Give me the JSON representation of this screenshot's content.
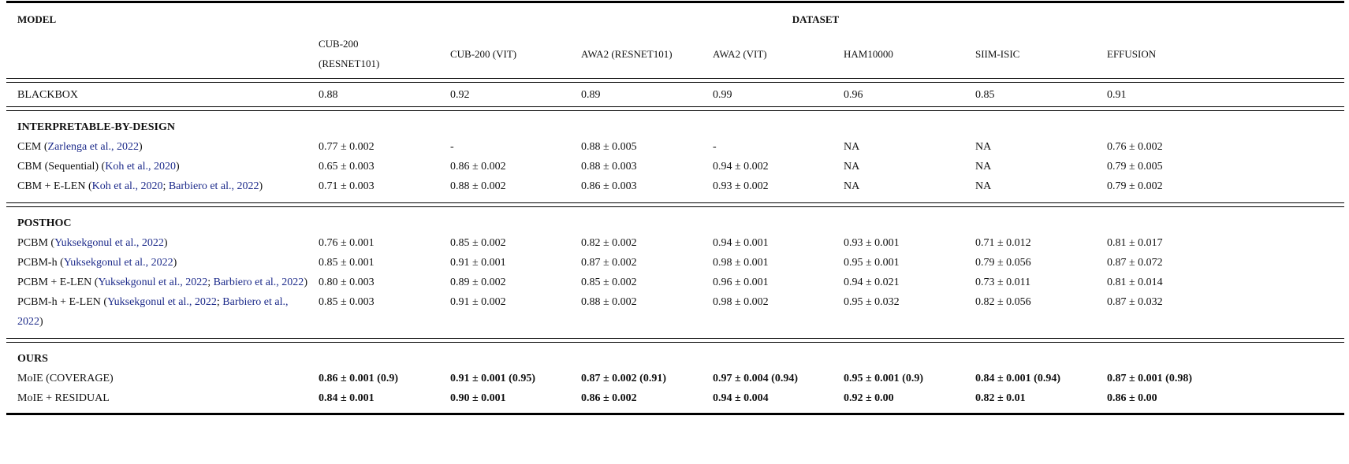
{
  "header": {
    "model_label": "MODEL",
    "dataset_label": "DATASET"
  },
  "columns": [
    "CUB-200 (RESNET101)",
    "CUB-200 (VIT)",
    "AWA2 (RESNET101)",
    "AWA2 (VIT)",
    "HAM10000",
    "SIIM-ISIC",
    "EFFUSION"
  ],
  "blackbox": {
    "name": "BLACKBOX",
    "values": [
      "0.88",
      "0.92",
      "0.89",
      "0.99",
      "0.96",
      "0.85",
      "0.91"
    ]
  },
  "sections": [
    {
      "title": "INTERPRETABLE-BY-DESIGN",
      "bold_values": false,
      "rows": [
        {
          "name": "CEM",
          "citations": [
            "Zarlenga et al., 2022"
          ],
          "values": [
            "0.77 ± 0.002",
            "-",
            "0.88 ± 0.005",
            "-",
            "NA",
            "NA",
            "0.76 ± 0.002"
          ]
        },
        {
          "name": "CBM (Sequential)",
          "citations": [
            "Koh et al., 2020"
          ],
          "values": [
            "0.65 ± 0.003",
            "0.86 ± 0.002",
            "0.88 ± 0.003",
            "0.94 ± 0.002",
            "NA",
            "NA",
            "0.79 ± 0.005"
          ]
        },
        {
          "name": "CBM + E-LEN",
          "citations": [
            "Koh et al., 2020",
            "Barbiero et al., 2022"
          ],
          "values": [
            "0.71 ± 0.003",
            "0.88 ± 0.002",
            "0.86 ± 0.003",
            "0.93 ± 0.002",
            "NA",
            "NA",
            "0.79 ± 0.002"
          ]
        }
      ]
    },
    {
      "title": "POSTHOC",
      "bold_values": false,
      "rows": [
        {
          "name": "PCBM",
          "citations": [
            "Yuksekgonul et al., 2022"
          ],
          "values": [
            "0.76 ± 0.001",
            "0.85 ± 0.002",
            "0.82 ± 0.002",
            "0.94 ± 0.001",
            "0.93 ± 0.001",
            "0.71 ± 0.012",
            "0.81 ± 0.017"
          ]
        },
        {
          "name": "PCBM-h",
          "citations": [
            "Yuksekgonul et al., 2022"
          ],
          "values": [
            "0.85 ± 0.001",
            "0.91 ± 0.001",
            "0.87 ± 0.002",
            "0.98 ± 0.001",
            "0.95 ± 0.001",
            "0.79 ± 0.056",
            "0.87 ± 0.072"
          ]
        },
        {
          "name": "PCBM + E-LEN",
          "citations": [
            "Yuksekgonul et al., 2022",
            "Barbiero et al., 2022"
          ],
          "values": [
            "0.80 ± 0.003",
            "0.89 ± 0.002",
            "0.85 ± 0.002",
            "0.96 ± 0.001",
            "0.94 ± 0.021",
            "0.73 ± 0.011",
            "0.81 ± 0.014"
          ]
        },
        {
          "name": "PCBM-h + E-LEN",
          "citations": [
            "Yuksekgonul et al., 2022",
            "Barbiero et al., 2022"
          ],
          "values": [
            "0.85 ± 0.003",
            "0.91 ± 0.002",
            "0.88 ± 0.002",
            "0.98 ± 0.002",
            "0.95 ± 0.032",
            "0.82 ± 0.056",
            "0.87 ± 0.032"
          ]
        }
      ]
    },
    {
      "title": "OURS",
      "bold_values": true,
      "rows": [
        {
          "name": "MoIE (COVERAGE)",
          "citations": [],
          "values": [
            "0.86 ± 0.001 (0.9)",
            "0.91 ± 0.001 (0.95)",
            "0.87 ± 0.002 (0.91)",
            "0.97 ± 0.004 (0.94)",
            "0.95 ± 0.001 (0.9)",
            "0.84 ± 0.001 (0.94)",
            "0.87 ± 0.001 (0.98)"
          ]
        },
        {
          "name": "MoIE + RESIDUAL",
          "citations": [],
          "values": [
            "0.84 ± 0.001",
            "0.90 ± 0.001",
            "0.86 ± 0.002",
            "0.94 ± 0.004",
            "0.92 ± 0.00",
            "0.82 ± 0.01",
            "0.86 ± 0.00"
          ]
        }
      ]
    }
  ],
  "colors": {
    "citation": "#1c2a8a",
    "text": "#111111"
  }
}
